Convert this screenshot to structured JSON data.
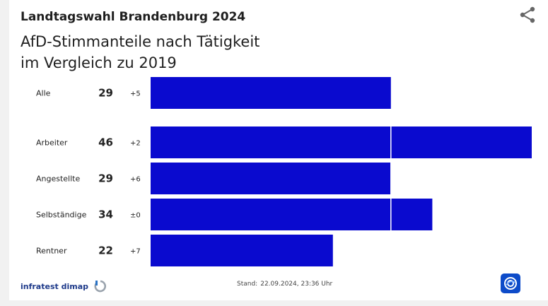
{
  "header": {
    "title": "Landtagswahl Brandenburg 2024",
    "subtitle_line1": "AfD-Stimmanteile nach Tätigkeit",
    "subtitle_line2": "im Vergleich zu 2019"
  },
  "chart_data": {
    "type": "bar",
    "orientation": "horizontal",
    "categories": [
      "Alle",
      "Arbeiter",
      "Angestellte",
      "Selbständige",
      "Rentner"
    ],
    "values": [
      29,
      46,
      29,
      34,
      22
    ],
    "changes": [
      "+5",
      "+2",
      "+6",
      "±0",
      "+7"
    ],
    "reference_value": 29,
    "xlim": [
      0,
      46
    ],
    "bar_color": "#0a0acf",
    "grid": false
  },
  "footer": {
    "source": "infratest dimap",
    "stand_label": "Stand:",
    "stand_value": "22.09.2024, 23:36 Uhr"
  },
  "icons": {
    "share": "share-icon",
    "source_logo": "infratest-dimap-logo",
    "broadcaster_logo": "tagesschau-logo"
  }
}
